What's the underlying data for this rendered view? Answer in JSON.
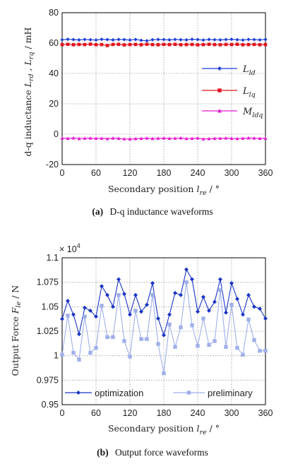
{
  "captions": {
    "a_tag": "(a)",
    "a_text": "D-q inductance waveforms",
    "b_tag": "(b)",
    "b_text": "Output force waveforms"
  },
  "chart_data": [
    {
      "type": "line",
      "panel": "(a)",
      "ylabel": "d-q inductance L_rd , L_rq / mH",
      "xlabel": "Secondary position l_re / °",
      "xlim": [
        0,
        360
      ],
      "ylim": [
        -20,
        80
      ],
      "xticks": [
        0,
        60,
        120,
        180,
        240,
        300,
        360
      ],
      "yticks": [
        -20,
        0,
        20,
        40,
        60,
        80
      ],
      "grid": true,
      "legend_position": "right",
      "x": [
        0,
        10,
        20,
        30,
        40,
        50,
        60,
        70,
        80,
        90,
        100,
        110,
        120,
        130,
        140,
        150,
        160,
        170,
        180,
        190,
        200,
        210,
        220,
        230,
        240,
        250,
        260,
        270,
        280,
        290,
        300,
        310,
        320,
        330,
        340,
        350,
        360
      ],
      "series": [
        {
          "name": "L_ld",
          "color": "#1f3fd6",
          "marker": "diamond",
          "values": [
            62.2,
            62.5,
            62.3,
            62.1,
            62.4,
            62.2,
            62.0,
            62.5,
            62.3,
            62.1,
            62.4,
            62.3,
            62.0,
            62.4,
            61.8,
            61.5,
            62.2,
            62.4,
            62.3,
            62.1,
            62.4,
            62.2,
            62.1,
            62.5,
            62.3,
            62.0,
            62.4,
            62.2,
            62.1,
            62.3,
            62.5,
            62.2,
            62.0,
            62.4,
            62.3,
            62.1,
            62.4
          ]
        },
        {
          "name": "L_lq",
          "color": "#e0141e",
          "marker": "square",
          "values": [
            59.0,
            59.2,
            58.9,
            59.1,
            59.0,
            59.3,
            58.9,
            59.0,
            58.4,
            59.1,
            59.2,
            58.8,
            59.0,
            59.1,
            58.9,
            59.2,
            59.0,
            58.9,
            59.1,
            59.0,
            59.2,
            58.9,
            59.0,
            59.1,
            58.8,
            59.0,
            59.2,
            59.0,
            58.9,
            59.1,
            59.0,
            59.2,
            58.9,
            59.0,
            59.1,
            58.9,
            59.0
          ]
        },
        {
          "name": "M_ldq",
          "color": "#e81ad0",
          "marker": "triangle",
          "values": [
            -2.6,
            -2.8,
            -2.5,
            -2.9,
            -2.7,
            -2.6,
            -2.8,
            -2.7,
            -3.0,
            -2.6,
            -2.8,
            -3.1,
            -3.2,
            -3.0,
            -2.8,
            -2.6,
            -2.9,
            -2.7,
            -2.6,
            -2.8,
            -2.7,
            -2.5,
            -2.9,
            -2.8,
            -2.6,
            -3.1,
            -3.0,
            -2.8,
            -2.7,
            -2.6,
            -2.8,
            -2.9,
            -2.7,
            -2.5,
            -2.6,
            -2.8,
            -2.7
          ]
        }
      ]
    },
    {
      "type": "line",
      "panel": "(b)",
      "ylabel": "Output Force F_le / N",
      "xlabel": "Secondary position l_re / °",
      "multiplier": "× 10^4",
      "xlim": [
        0,
        360
      ],
      "ylim": [
        9500,
        11000
      ],
      "xticks": [
        0,
        60,
        120,
        180,
        240,
        300,
        360
      ],
      "yticks": [
        9500,
        9750,
        10000,
        10250,
        10500,
        10750,
        11000
      ],
      "ytick_labels": [
        "0.95",
        "0.975",
        "1",
        "1.025",
        "1.05",
        "1.075",
        "1.1"
      ],
      "grid": true,
      "legend_position": "bottom",
      "x": [
        0,
        10,
        20,
        30,
        40,
        50,
        60,
        70,
        80,
        90,
        100,
        110,
        120,
        130,
        140,
        150,
        160,
        170,
        180,
        190,
        200,
        210,
        220,
        230,
        240,
        250,
        260,
        270,
        280,
        290,
        300,
        310,
        320,
        330,
        340,
        350,
        360
      ],
      "series": [
        {
          "name": "optimization",
          "color": "#1a35c4",
          "marker": "diamond",
          "values": [
            10375,
            10560,
            10420,
            10220,
            10490,
            10460,
            10400,
            10710,
            10620,
            10500,
            10780,
            10630,
            10420,
            10620,
            10450,
            10520,
            10740,
            10380,
            10210,
            10420,
            10640,
            10620,
            10880,
            10780,
            10450,
            10600,
            10460,
            10550,
            10780,
            10440,
            10740,
            10580,
            10420,
            10620,
            10500,
            10480,
            10380
          ]
        },
        {
          "name": "preliminary",
          "color": "#9fb0ea",
          "marker": "square",
          "values": [
            10010,
            10410,
            10030,
            9960,
            10400,
            10030,
            10080,
            10510,
            10190,
            10190,
            10620,
            10150,
            9990,
            10460,
            10170,
            10170,
            10620,
            10120,
            9820,
            10320,
            10090,
            10290,
            10750,
            10310,
            10100,
            10380,
            10110,
            10150,
            10670,
            10090,
            10520,
            10080,
            10010,
            10370,
            10160,
            10050,
            10050
          ]
        }
      ]
    }
  ]
}
